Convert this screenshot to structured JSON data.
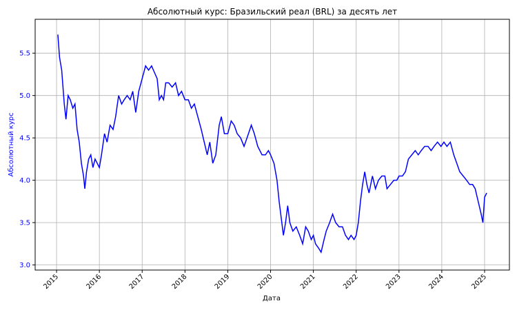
{
  "chart_data": {
    "type": "line",
    "title": "Абсолютный курс: Бразильский реал (BRL) за десять лет",
    "x_label": "Дата",
    "y_label": "Абсолютный курс",
    "x": [
      2015.03,
      2015.07,
      2015.12,
      2015.18,
      2015.22,
      2015.27,
      2015.32,
      2015.38,
      2015.43,
      2015.48,
      2015.53,
      2015.58,
      2015.63,
      2015.66,
      2015.7,
      2015.75,
      2015.8,
      2015.85,
      2015.9,
      2015.95,
      2016.0,
      2016.05,
      2016.12,
      2016.18,
      2016.25,
      2016.32,
      2016.38,
      2016.45,
      2016.52,
      2016.58,
      2016.65,
      2016.72,
      2016.78,
      2016.85,
      2016.92,
      2017.0,
      2017.08,
      2017.15,
      2017.22,
      2017.28,
      2017.35,
      2017.4,
      2017.45,
      2017.5,
      2017.55,
      2017.62,
      2017.7,
      2017.78,
      2017.85,
      2017.92,
      2018.0,
      2018.08,
      2018.15,
      2018.22,
      2018.3,
      2018.38,
      2018.45,
      2018.52,
      2018.58,
      2018.65,
      2018.72,
      2018.8,
      2018.85,
      2018.92,
      2019.0,
      2019.08,
      2019.15,
      2019.22,
      2019.3,
      2019.38,
      2019.45,
      2019.55,
      2019.62,
      2019.7,
      2019.8,
      2019.88,
      2019.95,
      2020.0,
      2020.08,
      2020.15,
      2020.2,
      2020.25,
      2020.3,
      2020.35,
      2020.4,
      2020.45,
      2020.52,
      2020.6,
      2020.68,
      2020.75,
      2020.82,
      2020.88,
      2020.95,
      2021.0,
      2021.05,
      2021.12,
      2021.18,
      2021.25,
      2021.3,
      2021.38,
      2021.45,
      2021.52,
      2021.6,
      2021.68,
      2021.75,
      2021.82,
      2021.88,
      2021.95,
      2022.0,
      2022.05,
      2022.1,
      2022.15,
      2022.2,
      2022.25,
      2022.3,
      2022.38,
      2022.45,
      2022.52,
      2022.6,
      2022.67,
      2022.72,
      2022.8,
      2022.88,
      2022.95,
      2023.0,
      2023.08,
      2023.15,
      2023.22,
      2023.3,
      2023.38,
      2023.45,
      2023.52,
      2023.6,
      2023.68,
      2023.75,
      2023.82,
      2023.9,
      2023.98,
      2024.05,
      2024.12,
      2024.2,
      2024.28,
      2024.35,
      2024.42,
      2024.5,
      2024.58,
      2024.65,
      2024.72,
      2024.78,
      2024.85,
      2024.92,
      2024.96,
      2025.0,
      2025.05
    ],
    "series": [
      {
        "color": "#0000ff",
        "values": [
          5.72,
          5.45,
          5.3,
          4.9,
          4.72,
          5.0,
          4.95,
          4.85,
          4.9,
          4.6,
          4.45,
          4.2,
          4.05,
          3.9,
          4.1,
          4.25,
          4.3,
          4.15,
          4.25,
          4.2,
          4.15,
          4.3,
          4.55,
          4.45,
          4.65,
          4.6,
          4.75,
          5.0,
          4.9,
          4.95,
          5.0,
          4.95,
          5.05,
          4.8,
          5.05,
          5.2,
          5.35,
          5.3,
          5.35,
          5.28,
          5.2,
          4.95,
          5.0,
          4.95,
          5.15,
          5.15,
          5.1,
          5.15,
          5.0,
          5.05,
          4.95,
          4.95,
          4.85,
          4.9,
          4.75,
          4.6,
          4.45,
          4.3,
          4.45,
          4.2,
          4.3,
          4.65,
          4.75,
          4.55,
          4.55,
          4.7,
          4.65,
          4.55,
          4.5,
          4.4,
          4.5,
          4.65,
          4.55,
          4.4,
          4.3,
          4.3,
          4.35,
          4.3,
          4.2,
          4.0,
          3.75,
          3.55,
          3.35,
          3.5,
          3.7,
          3.5,
          3.4,
          3.45,
          3.35,
          3.25,
          3.45,
          3.4,
          3.3,
          3.35,
          3.25,
          3.2,
          3.15,
          3.3,
          3.4,
          3.5,
          3.6,
          3.5,
          3.45,
          3.45,
          3.35,
          3.3,
          3.35,
          3.3,
          3.35,
          3.5,
          3.75,
          3.95,
          4.1,
          3.95,
          3.85,
          4.05,
          3.9,
          4.0,
          4.05,
          4.05,
          3.9,
          3.95,
          4.0,
          4.0,
          4.05,
          4.05,
          4.1,
          4.25,
          4.3,
          4.35,
          4.3,
          4.35,
          4.4,
          4.4,
          4.35,
          4.4,
          4.45,
          4.4,
          4.45,
          4.4,
          4.45,
          4.3,
          4.2,
          4.1,
          4.05,
          4.0,
          3.95,
          3.95,
          3.9,
          3.75,
          3.6,
          3.5,
          3.8,
          3.85
        ]
      }
    ],
    "xlim": [
      2014.5,
      2025.58
    ],
    "xticks": [
      2015,
      2016,
      2017,
      2018,
      2019,
      2020,
      2021,
      2022,
      2023,
      2024,
      2025
    ],
    "ylim": [
      2.94,
      5.9
    ],
    "yticks": [
      {
        "value": 3.0,
        "label": "3.0"
      },
      {
        "value": 3.5,
        "label": "3.5"
      },
      {
        "value": 4.0,
        "label": "4.0"
      },
      {
        "value": 4.5,
        "label": "4.5"
      },
      {
        "value": 5.0,
        "label": "5.0"
      },
      {
        "value": 5.5,
        "label": "5.5"
      }
    ],
    "grid": true
  }
}
